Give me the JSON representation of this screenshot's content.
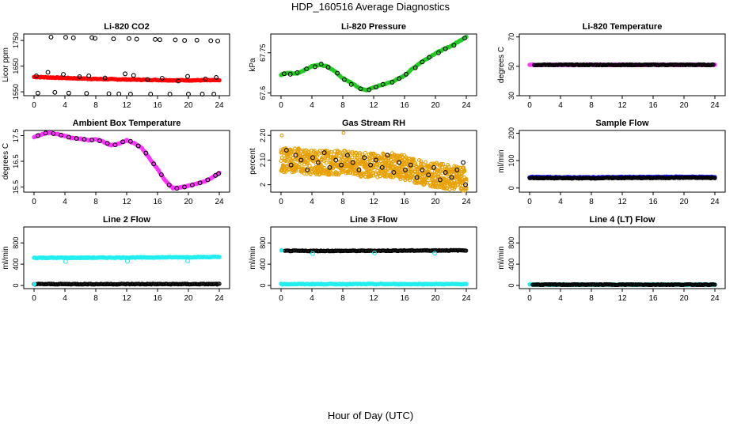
{
  "page": {
    "title": "HDP_160516  Average Diagnostics",
    "xlabel": "Hour of Day (UTC)"
  },
  "chart_data": [
    {
      "type": "scatter",
      "title": "Li-820 CO2",
      "ylabel": "Licor ppm",
      "yticks": [
        1550,
        1650,
        1750
      ],
      "ylim": [
        1535,
        1775
      ],
      "xlim": [
        0,
        24
      ],
      "xticks": [
        0,
        4,
        8,
        12,
        16,
        20,
        24
      ],
      "series": [
        {
          "color": "#ff0000",
          "marker": "filled",
          "kind": "dense_curve",
          "x": [
            0,
            2,
            4,
            6,
            8,
            10,
            12,
            14,
            16,
            18,
            20,
            22,
            24
          ],
          "y": [
            1608,
            1606,
            1604,
            1602,
            1600,
            1599,
            1598,
            1597,
            1596,
            1595,
            1595,
            1595,
            1595
          ]
        },
        {
          "color": "#000000",
          "marker": "open",
          "x": [
            0.5,
            2.2,
            4.1,
            5.1,
            7.5,
            7.9,
            10.3,
            12.3,
            13.3,
            15.7,
            16.3,
            18.3,
            19.5,
            21.1,
            22.9,
            23.8,
            0.3,
            1.8,
            3.8,
            5.9,
            7.1,
            9.2,
            11.8,
            12.9,
            14.7,
            16.6,
            18.7,
            19.9,
            22.2,
            23.6,
            2.7,
            4.5,
            6.8,
            9.7,
            11.0,
            12.5,
            15.1,
            17.6,
            20.0,
            21.8,
            23.3
          ],
          "y": [
            1545,
            1763,
            1762,
            1760,
            1761,
            1758,
            1756,
            1757,
            1755,
            1754,
            1753,
            1752,
            1750,
            1751,
            1749,
            1748,
            1612,
            1626,
            1618,
            1609,
            1612,
            1604,
            1620,
            1614,
            1598,
            1603,
            1592,
            1610,
            1600,
            1606,
            1548,
            1545,
            1544,
            1543,
            1542,
            1541,
            1540,
            1541,
            1539,
            1540,
            1539
          ]
        }
      ]
    },
    {
      "type": "scatter",
      "title": "Li-820 Pressure",
      "ylabel": "kPa",
      "yticks": [
        67.6,
        67.75
      ],
      "ylim": [
        67.59,
        67.82
      ],
      "xlim": [
        0,
        24
      ],
      "xticks": [
        0,
        4,
        8,
        12,
        16,
        20,
        24
      ],
      "series": [
        {
          "color": "#22cc22",
          "marker": "filled",
          "kind": "dense_curve",
          "x": [
            0,
            1,
            2,
            3,
            4,
            5,
            6,
            7,
            8,
            9,
            10,
            11,
            12,
            13,
            14,
            15,
            16,
            17,
            18,
            19,
            20,
            21,
            22,
            23,
            24
          ],
          "y": [
            67.668,
            67.675,
            67.672,
            67.685,
            67.7,
            67.705,
            67.7,
            67.68,
            67.655,
            67.64,
            67.62,
            67.61,
            67.62,
            67.63,
            67.638,
            67.65,
            67.665,
            67.69,
            67.712,
            67.73,
            67.748,
            67.762,
            67.775,
            67.792,
            67.81
          ]
        },
        {
          "color": "#000000",
          "marker": "open",
          "x": [
            0.4,
            1.2,
            2.1,
            3.3,
            4.4,
            5.2,
            6.1,
            7.3,
            8.2,
            9.1,
            10.3,
            11.4,
            12.3,
            13.2,
            14.4,
            15.3,
            16.2,
            17.4,
            18.3,
            19.2,
            20.4,
            21.3,
            22.4,
            23.8
          ],
          "y": [
            67.672,
            67.67,
            67.676,
            67.69,
            67.698,
            67.708,
            67.696,
            67.674,
            67.65,
            67.632,
            67.616,
            67.612,
            67.622,
            67.632,
            67.64,
            67.654,
            67.67,
            67.694,
            67.716,
            67.733,
            67.75,
            67.765,
            67.778,
            67.805
          ]
        }
      ]
    },
    {
      "type": "scatter",
      "title": "Li-820 Temperature",
      "ylabel": "degrees C",
      "yticks": [
        30,
        50,
        70
      ],
      "ylim": [
        30,
        72
      ],
      "xlim": [
        0,
        24
      ],
      "xticks": [
        0,
        4,
        8,
        12,
        16,
        20,
        24
      ],
      "series": [
        {
          "color": "#ff33ff",
          "marker": "filled",
          "kind": "dense_curve",
          "x": [
            0,
            4,
            8,
            12,
            16,
            20,
            24
          ],
          "y": [
            51,
            51,
            51,
            51,
            51,
            51,
            51
          ]
        },
        {
          "color": "#000000",
          "marker": "open",
          "kind": "dense_curve_open",
          "x": [
            0.6,
            4,
            8,
            12,
            16,
            20,
            23.9
          ],
          "y": [
            51,
            51,
            51,
            51,
            51,
            51,
            51
          ]
        }
      ]
    },
    {
      "type": "scatter",
      "title": "Ambient Box Temperature",
      "ylabel": "degrees C",
      "yticks": [
        15.5,
        16.5,
        17.5
      ],
      "ylim": [
        15.3,
        17.7
      ],
      "xlim": [
        0,
        24
      ],
      "xticks": [
        0,
        4,
        8,
        12,
        16,
        20,
        24
      ],
      "series": [
        {
          "color": "#ff33ff",
          "marker": "filled",
          "kind": "dense_curve",
          "x": [
            0,
            1,
            2,
            3,
            4,
            5,
            6,
            7,
            8,
            9,
            10,
            11,
            12,
            13,
            14,
            15,
            16,
            17,
            18,
            19,
            20,
            21,
            22,
            23,
            24
          ],
          "y": [
            17.45,
            17.55,
            17.62,
            17.56,
            17.48,
            17.4,
            17.38,
            17.32,
            17.36,
            17.26,
            17.12,
            17.18,
            17.32,
            17.2,
            17.0,
            16.6,
            16.2,
            15.75,
            15.45,
            15.48,
            15.55,
            15.62,
            15.7,
            15.85,
            16.05
          ]
        },
        {
          "color": "#000000",
          "marker": "open",
          "x": [
            0.5,
            1.5,
            2.5,
            3.5,
            4.5,
            5.5,
            6.5,
            7.5,
            8.5,
            9.5,
            10.5,
            11.5,
            12.5,
            13.5,
            14.5,
            15.5,
            16.5,
            17.5,
            18.5,
            19.5,
            20.5,
            21.5,
            22.5,
            23.5,
            23.9
          ],
          "y": [
            17.5,
            17.6,
            17.58,
            17.52,
            17.44,
            17.39,
            17.36,
            17.33,
            17.3,
            17.2,
            17.14,
            17.26,
            17.28,
            17.1,
            16.82,
            16.4,
            15.98,
            15.58,
            15.45,
            15.5,
            15.58,
            15.66,
            15.78,
            15.95,
            16.02
          ]
        }
      ]
    },
    {
      "type": "scatter",
      "title": "Gas Stream RH",
      "ylabel": "percent",
      "yticks": [
        2.0,
        2.1,
        2.2
      ],
      "ylim": [
        1.97,
        2.22
      ],
      "xlim": [
        0,
        24
      ],
      "xticks": [
        0,
        4,
        8,
        12,
        16,
        20,
        24
      ],
      "series": [
        {
          "color": "#e8a000",
          "marker": "open",
          "kind": "band",
          "x": [
            0,
            2,
            4,
            6,
            8,
            10,
            12,
            14,
            16,
            18,
            20,
            22,
            24
          ],
          "y": [
            2.1,
            2.1,
            2.09,
            2.09,
            2.09,
            2.08,
            2.08,
            2.08,
            2.07,
            2.05,
            2.04,
            2.03,
            2.02
          ],
          "spread": [
            0.05,
            0.05,
            0.05,
            0.05,
            0.05,
            0.05,
            0.05,
            0.05,
            0.05,
            0.05,
            0.05,
            0.05,
            0.05
          ],
          "outliers_x": [
            0.1,
            8.1
          ],
          "outliers_y": [
            2.2,
            2.21
          ]
        },
        {
          "color": "#000000",
          "marker": "open",
          "x": [
            0.7,
            1.3,
            1.9,
            2.6,
            3.4,
            4.1,
            4.8,
            5.6,
            6.3,
            7.1,
            7.8,
            8.6,
            9.3,
            10.1,
            10.8,
            11.6,
            12.3,
            13.1,
            13.8,
            14.6,
            15.3,
            16.1,
            16.8,
            17.6,
            18.3,
            19.1,
            19.8,
            20.6,
            21.3,
            22.1,
            22.8,
            23.6,
            23.9
          ],
          "y": [
            2.14,
            2.08,
            2.12,
            2.1,
            2.06,
            2.11,
            2.09,
            2.13,
            2.07,
            2.1,
            2.08,
            2.12,
            2.09,
            2.06,
            2.11,
            2.08,
            2.1,
            2.07,
            2.12,
            2.05,
            2.09,
            2.06,
            2.08,
            2.03,
            2.06,
            2.04,
            2.07,
            2.02,
            2.05,
            2.03,
            2.06,
            2.09,
            2.0
          ]
        }
      ]
    },
    {
      "type": "scatter",
      "title": "Sample Flow",
      "ylabel": "ml/min",
      "yticks": [
        0,
        100,
        200
      ],
      "ylim": [
        -15,
        210
      ],
      "xlim": [
        0,
        24
      ],
      "xticks": [
        0,
        4,
        8,
        12,
        16,
        20,
        24
      ],
      "series": [
        {
          "color": "#1a1aff",
          "marker": "filled",
          "kind": "dense_curve",
          "x": [
            0,
            4,
            8,
            12,
            16,
            20,
            24
          ],
          "y": [
            40,
            39,
            39,
            40,
            40,
            41,
            40
          ]
        },
        {
          "color": "#000000",
          "marker": "open",
          "kind": "dense_curve_open",
          "x": [
            0,
            4,
            8,
            12,
            16,
            20,
            24
          ],
          "y": [
            37,
            36,
            36,
            37,
            37,
            38,
            37
          ]
        }
      ]
    },
    {
      "type": "scatter",
      "title": "Line 2 Flow",
      "ylabel": "ml/min",
      "yticks": [
        0,
        400,
        800
      ],
      "ylim": [
        -60,
        1100
      ],
      "xlim": [
        0,
        24
      ],
      "xticks": [
        0,
        4,
        8,
        12,
        16,
        20,
        24
      ],
      "series": [
        {
          "color": "#22eeee",
          "marker": "filled",
          "kind": "dense_curve",
          "x": [
            0,
            4,
            8,
            12,
            16,
            20,
            24
          ],
          "y": [
            520,
            520,
            522,
            525,
            528,
            532,
            535
          ]
        },
        {
          "color": "#22eeee",
          "marker": "open",
          "x": [
            4.1,
            12.1,
            19.9
          ],
          "y": [
            450,
            455,
            460
          ]
        },
        {
          "color": "#000000",
          "marker": "open",
          "kind": "dense_curve_open",
          "x": [
            0,
            4,
            8,
            12,
            16,
            20,
            24
          ],
          "y": [
            25,
            25,
            25,
            25,
            25,
            25,
            25
          ]
        },
        {
          "color": "#22eeee",
          "marker": "filled",
          "x": [
            0.05
          ],
          "y": [
            25
          ]
        }
      ]
    },
    {
      "type": "scatter",
      "title": "Line 3 Flow",
      "ylabel": "ml/min",
      "yticks": [
        0,
        400,
        800
      ],
      "ylim": [
        -60,
        1100
      ],
      "xlim": [
        0,
        24
      ],
      "xticks": [
        0,
        4,
        8,
        12,
        16,
        20,
        24
      ],
      "series": [
        {
          "color": "#000000",
          "marker": "open",
          "kind": "dense_curve_open",
          "x": [
            0.5,
            4,
            8,
            12,
            16,
            20,
            24
          ],
          "y": [
            650,
            650,
            650,
            652,
            655,
            658,
            660
          ]
        },
        {
          "color": "#22eeee",
          "marker": "open",
          "x": [
            4.1,
            12.1,
            19.9
          ],
          "y": [
            600,
            610,
            605
          ]
        },
        {
          "color": "#22eeee",
          "marker": "filled",
          "x": [
            0.05
          ],
          "y": [
            660
          ]
        },
        {
          "color": "#22eeee",
          "marker": "filled",
          "kind": "dense_curve",
          "x": [
            0,
            4,
            8,
            12,
            16,
            20,
            24
          ],
          "y": [
            25,
            25,
            25,
            25,
            25,
            25,
            25
          ]
        }
      ]
    },
    {
      "type": "scatter",
      "title": "Line 4 (LT) Flow",
      "ylabel": "ml/min",
      "yticks": [
        0,
        400,
        800
      ],
      "ylim": [
        -60,
        1100
      ],
      "xlim": [
        0,
        24
      ],
      "xticks": [
        0,
        4,
        8,
        12,
        16,
        20,
        24
      ],
      "series": [
        {
          "color": "#22eeee",
          "marker": "filled",
          "kind": "dense_curve",
          "x": [
            0,
            4,
            8,
            12,
            16,
            20,
            24
          ],
          "y": [
            15,
            15,
            15,
            15,
            15,
            15,
            15
          ]
        },
        {
          "color": "#000000",
          "marker": "open",
          "kind": "dense_curve_open",
          "x": [
            0.4,
            4,
            8,
            12,
            16,
            20,
            24
          ],
          "y": [
            15,
            15,
            15,
            15,
            15,
            15,
            15
          ]
        }
      ]
    }
  ]
}
